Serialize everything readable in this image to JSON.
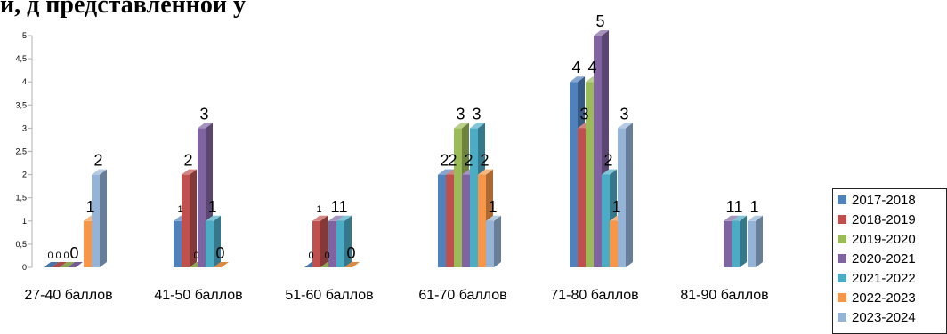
{
  "heading": "й, д представленной у",
  "chart_data": {
    "type": "bar",
    "subtype": "3d-clustered-column",
    "categories": [
      "27-40 баллов",
      "41-50 баллов",
      "51-60 баллов",
      "61-70 баллов",
      "71-80 баллов",
      "81-90 баллов"
    ],
    "series": [
      {
        "name": "2017-2018",
        "color": "#4F81BD",
        "values": [
          0,
          1,
          0,
          2,
          4,
          null
        ],
        "labels": [
          "0",
          "1",
          "0",
          "2",
          "4",
          ""
        ]
      },
      {
        "name": "2018-2019",
        "color": "#C0504D",
        "values": [
          0,
          2,
          1,
          2,
          3,
          null
        ],
        "labels": [
          "0",
          "2",
          "1",
          "2",
          "3",
          ""
        ]
      },
      {
        "name": "2019-2020",
        "color": "#9BBB59",
        "values": [
          0,
          0,
          0,
          3,
          4,
          null
        ],
        "labels": [
          "0",
          "0",
          "0",
          "3",
          "4",
          ""
        ]
      },
      {
        "name": "2020-2021",
        "color": "#8064A2",
        "values": [
          0,
          3,
          1,
          2,
          5,
          1
        ],
        "labels": [
          "0",
          "3",
          "1",
          "2",
          "5",
          "1"
        ]
      },
      {
        "name": "2021-2022",
        "color": "#4BACC6",
        "values": [
          null,
          1,
          1,
          3,
          2,
          1
        ],
        "labels": [
          "",
          "1",
          "1",
          "3",
          "2",
          "1"
        ]
      },
      {
        "name": "2022-2023",
        "color": "#F79646",
        "values": [
          1,
          0,
          0,
          2,
          1,
          null
        ],
        "labels": [
          "1",
          "0",
          "0",
          "2",
          "1",
          ""
        ]
      },
      {
        "name": "2023-2024",
        "color": "#95B3D7",
        "values": [
          2,
          null,
          null,
          1,
          3,
          1
        ],
        "labels": [
          "2",
          "",
          "",
          "1",
          "3",
          "1"
        ]
      }
    ],
    "yticks": [
      "0",
      "0,5",
      "1",
      "1,5",
      "2",
      "2,5",
      "3",
      "3,5",
      "4",
      "4,5",
      "5"
    ],
    "ylim": [
      0,
      5
    ],
    "grid": false,
    "legend_position": "right"
  }
}
